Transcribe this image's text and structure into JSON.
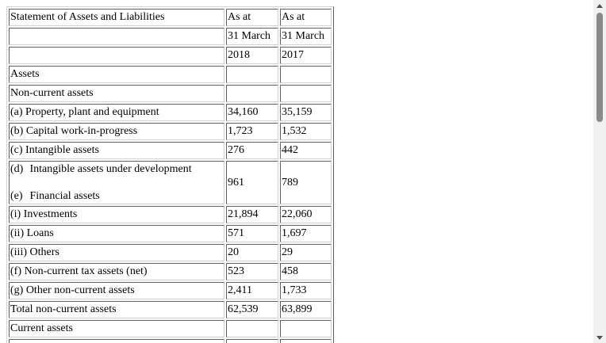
{
  "table": {
    "rows": [
      {
        "label": "Statement of Assets and Liabilities",
        "c1": "As at",
        "c2": "As at"
      },
      {
        "label": "",
        "c1": "31 March",
        "c2": "31 March"
      },
      {
        "label": "",
        "c1": "2018",
        "c2": "2017"
      },
      {
        "label": "Assets",
        "c1": "",
        "c2": ""
      },
      {
        "label": "Non-current assets",
        "c1": "",
        "c2": ""
      },
      {
        "label": "(a) Property, plant and equipment",
        "c1": "34,160",
        "c2": "35,159"
      },
      {
        "label": "(b) Capital work-in-progress",
        "c1": "1,723",
        "c2": "1,532"
      },
      {
        "label": "(c) Intangible assets",
        "c1": "276",
        "c2": "442"
      },
      {
        "label_d_marker": "(d)",
        "label_d_text": "Intangible assets under development",
        "label_e_marker": "(e)",
        "label_e_text": "Financial assets",
        "c1": "961",
        "c2": "789"
      },
      {
        "label": "(i) Investments",
        "c1": "21,894",
        "c2": "22,060"
      },
      {
        "label": "(ii) Loans",
        "c1": "571",
        "c2": "1,697"
      },
      {
        "label": "(iii) Others",
        "c1": "20",
        "c2": "29"
      },
      {
        "label": "(f) Non-current tax assets (net)",
        "c1": "523",
        "c2": "458"
      },
      {
        "label": "(g) Other non-current assets",
        "c1": "2,411",
        "c2": "1,733"
      },
      {
        "label": "Total non-current assets",
        "c1": "62,539",
        "c2": "63,899"
      },
      {
        "label": "Current assets",
        "c1": "",
        "c2": ""
      }
    ]
  },
  "scrollbar": {
    "up_icon": "triangle-up-icon",
    "down_icon": "triangle-down-icon"
  }
}
